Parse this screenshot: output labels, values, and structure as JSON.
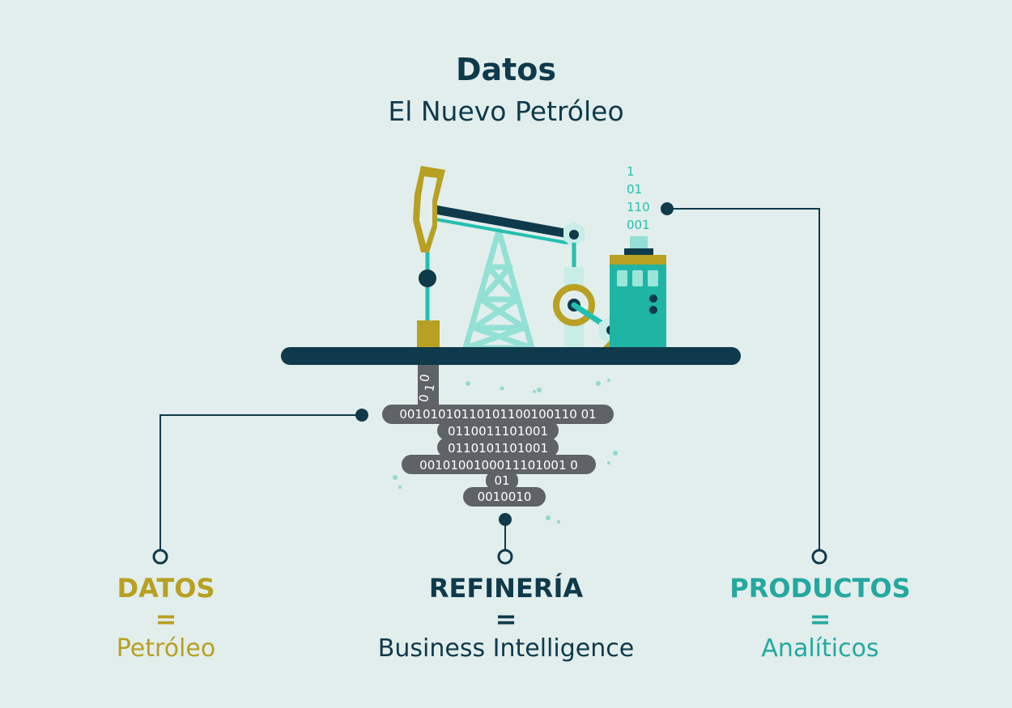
{
  "header": {
    "title": "Datos",
    "subtitle": "El Nuevo Petróleo"
  },
  "product_output": {
    "lines": [
      "1",
      "01",
      "110",
      "001"
    ]
  },
  "pipe_digits": [
    "0",
    "1",
    "0",
    "0"
  ],
  "data_blob": {
    "lines": [
      "00101010110101100100110 01",
      "0110011101001",
      "0110101101001",
      "0010100100011101001 0",
      "01",
      "0010010"
    ]
  },
  "labels": [
    {
      "title": "DATOS",
      "equals": "=",
      "subtitle": "Petróleo"
    },
    {
      "title": "REFINERÍA",
      "equals": "=",
      "subtitle": "Business Intelligence"
    },
    {
      "title": "PRODUCTOS",
      "equals": "=",
      "subtitle": "Analíticos"
    }
  ],
  "colors": {
    "background": "#e2eeec",
    "navy": "#0e3a4b",
    "mustard": "#b8a022",
    "teal": "#24bfb0",
    "mint": "#93e0d5",
    "blob": "#5f6266"
  }
}
